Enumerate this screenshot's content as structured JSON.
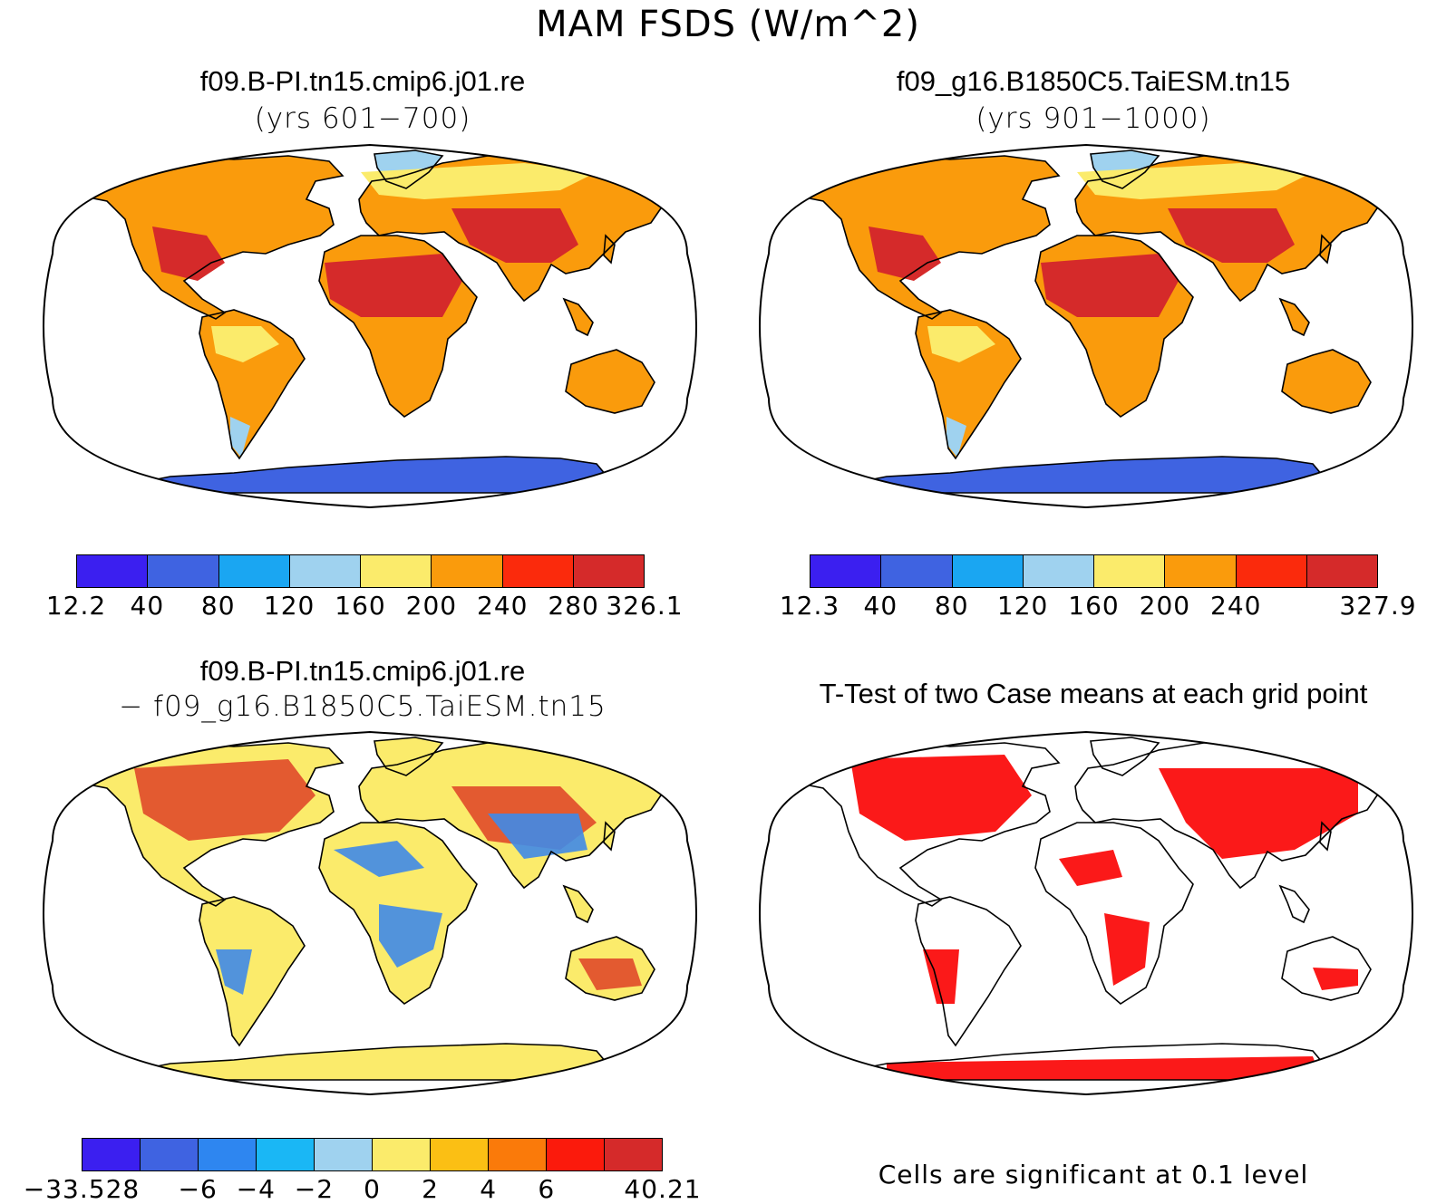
{
  "figure_title": "MAM FSDS (W/m^2)",
  "panels": [
    {
      "id": "case1",
      "title": "f09.B-PI.tn15.cmip6.j01.re",
      "subtitle": "(yrs 601−700)",
      "colorbar": {
        "colors": [
          "#3b1ff0",
          "#3f63e1",
          "#1aa6f2",
          "#9fd2ef",
          "#fbeb6b",
          "#fa9b0c",
          "#fb2a0c",
          "#d52a2a"
        ],
        "tick_labels": [
          "12.2",
          "40",
          "80",
          "120",
          "160",
          "200",
          "240",
          "280",
          "326.1"
        ]
      }
    },
    {
      "id": "case2",
      "title": "f09_g16.B1850C5.TaiESM.tn15",
      "subtitle": "(yrs 901−1000)",
      "colorbar": {
        "colors": [
          "#3b1ff0",
          "#3f63e1",
          "#1aa6f2",
          "#9fd2ef",
          "#fbeb6b",
          "#fa9b0c",
          "#fb2a0c",
          "#d52a2a"
        ],
        "tick_labels": [
          "12.3",
          "40",
          "80",
          "120",
          "160",
          "200",
          "240",
          "",
          "327.9"
        ]
      }
    },
    {
      "id": "diff",
      "title": "f09.B-PI.tn15.cmip6.j01.re",
      "subtitle": "− f09_g16.B1850C5.TaiESM.tn15",
      "colorbar": {
        "colors": [
          "#3b1ff0",
          "#3f63e1",
          "#2e86f0",
          "#1ab7f5",
          "#9fd2ef",
          "#fbeb6b",
          "#fbbf14",
          "#fa7a0a",
          "#fb1a0c",
          "#d52a2a"
        ],
        "tick_labels": [
          "−33.528",
          "",
          "−6",
          "−4",
          "−2",
          "0",
          "2",
          "4",
          "6",
          "",
          "40.21"
        ]
      }
    },
    {
      "id": "ttest",
      "title": "T-Test of two Case means at each grid point",
      "note": "Cells are significant at 0.1 level",
      "significance_color": "#fb0d0d"
    }
  ],
  "map_colors": {
    "land_warm": "#fa9b0c",
    "land_hot": "#d52a2a",
    "land_mild": "#fbeb6b",
    "land_cool": "#9fd2ef",
    "antarctica": "#3f63e1",
    "antarctica_diff": "#fbeb6b",
    "diff_pos": "#e04a2a",
    "diff_neg": "#3f8ae8"
  }
}
